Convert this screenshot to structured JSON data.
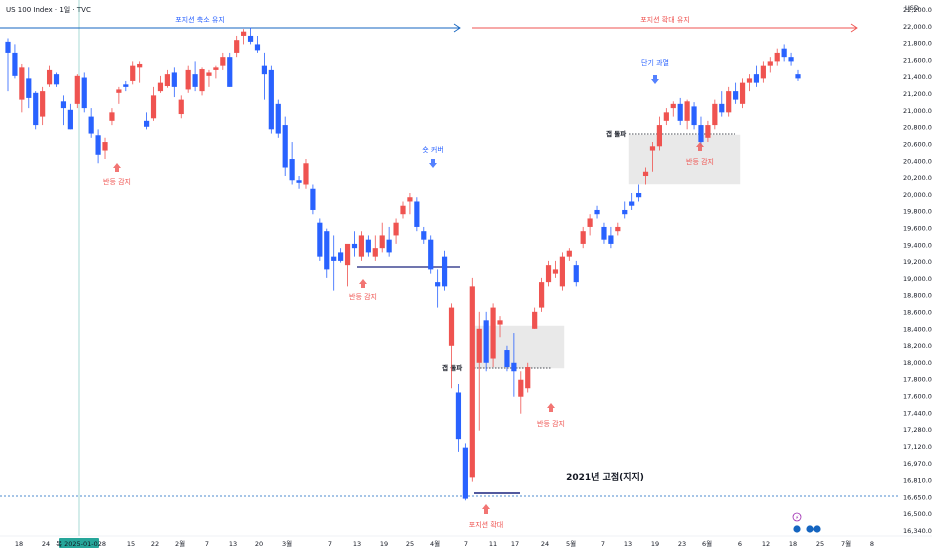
{
  "header": {
    "title": "US 100 Index · 1일 · TVC",
    "currency": "USD"
  },
  "colors": {
    "up": "#ef5350",
    "down": "#2962ff",
    "support_line": "#1a237e",
    "band_red": "#ef5350",
    "band_blue": "#1565c0"
  },
  "chart_data": {
    "type": "candlestick",
    "ylim": [
      16330,
      22220
    ],
    "y_ticks": [
      "22,200.00",
      "22,000.00",
      "21,800.00",
      "21,600.00",
      "21,400.00",
      "21,200.00",
      "21,000.00",
      "20,800.00",
      "20,600.00",
      "20,400.00",
      "20,200.00",
      "20,000.00",
      "19,800.00",
      "19,600.00",
      "19,400.00",
      "19,200.00",
      "19,000.00",
      "18,800.00",
      "18,600.00",
      "18,400.00",
      "18,200.00",
      "18,000.00",
      "17,800.00",
      "17,600.00",
      "17,440.00",
      "17,280.00",
      "17,120.00",
      "16,970.00",
      "16,810.00",
      "16,650.00",
      "16,500.00",
      "16,340.00"
    ],
    "x_ticks": [
      "18",
      "24",
      "목 2025-01-02",
      "8",
      "15",
      "22",
      "2월",
      "7",
      "13",
      "20",
      "3월",
      "7",
      "13",
      "19",
      "25",
      "4월",
      "7",
      "11",
      "17",
      "24",
      "5월",
      "7",
      "13",
      "19",
      "23",
      "6월",
      "6",
      "12",
      "18",
      "25",
      "7월",
      "8"
    ],
    "highlighted_date": "목 2025-01-02",
    "candles": [
      {
        "o": 22080,
        "h": 22120,
        "l": 21500,
        "c": 21950
      },
      {
        "o": 21950,
        "h": 22050,
        "l": 21650,
        "c": 21680
      },
      {
        "o": 21400,
        "h": 21820,
        "l": 21250,
        "c": 21780
      },
      {
        "o": 21650,
        "h": 21780,
        "l": 21300,
        "c": 21420
      },
      {
        "o": 21480,
        "h": 21500,
        "l": 21050,
        "c": 21100
      },
      {
        "o": 21200,
        "h": 21550,
        "l": 21100,
        "c": 21500
      },
      {
        "o": 21580,
        "h": 21800,
        "l": 21550,
        "c": 21750
      },
      {
        "o": 21700,
        "h": 21720,
        "l": 21550,
        "c": 21580
      },
      {
        "o": 21380,
        "h": 21450,
        "l": 21100,
        "c": 21300
      },
      {
        "o": 21280,
        "h": 21350,
        "l": 21050,
        "c": 21050
      },
      {
        "o": 21350,
        "h": 21700,
        "l": 21300,
        "c": 21680
      },
      {
        "o": 21660,
        "h": 21720,
        "l": 21250,
        "c": 21300
      },
      {
        "o": 21200,
        "h": 21300,
        "l": 20950,
        "c": 21000
      },
      {
        "o": 20980,
        "h": 21050,
        "l": 20650,
        "c": 20750
      },
      {
        "o": 20800,
        "h": 20950,
        "l": 20700,
        "c": 20900
      },
      {
        "o": 21150,
        "h": 21300,
        "l": 21100,
        "c": 21250
      },
      {
        "o": 21480,
        "h": 21550,
        "l": 21350,
        "c": 21520
      },
      {
        "o": 21580,
        "h": 21620,
        "l": 21500,
        "c": 21550
      },
      {
        "o": 21620,
        "h": 21850,
        "l": 21580,
        "c": 21800
      },
      {
        "o": 21780,
        "h": 21850,
        "l": 21600,
        "c": 21820
      },
      {
        "o": 21150,
        "h": 21250,
        "l": 21050,
        "c": 21080
      },
      {
        "o": 21180,
        "h": 21550,
        "l": 21150,
        "c": 21450
      },
      {
        "o": 21500,
        "h": 21680,
        "l": 21480,
        "c": 21600
      },
      {
        "o": 21560,
        "h": 21750,
        "l": 21540,
        "c": 21700
      },
      {
        "o": 21720,
        "h": 21780,
        "l": 21430,
        "c": 21550
      },
      {
        "o": 21230,
        "h": 21450,
        "l": 21180,
        "c": 21400
      },
      {
        "o": 21520,
        "h": 21800,
        "l": 21480,
        "c": 21750
      },
      {
        "o": 21700,
        "h": 21850,
        "l": 21500,
        "c": 21550
      },
      {
        "o": 21500,
        "h": 21780,
        "l": 21450,
        "c": 21760
      },
      {
        "o": 21680,
        "h": 21750,
        "l": 21550,
        "c": 21720
      },
      {
        "o": 21750,
        "h": 21800,
        "l": 21650,
        "c": 21780
      },
      {
        "o": 21800,
        "h": 21950,
        "l": 21750,
        "c": 21900
      },
      {
        "o": 21900,
        "h": 21950,
        "l": 21550,
        "c": 21550
      },
      {
        "o": 21950,
        "h": 22150,
        "l": 21900,
        "c": 22100
      },
      {
        "o": 22150,
        "h": 22230,
        "l": 22050,
        "c": 22200
      },
      {
        "o": 22150,
        "h": 22250,
        "l": 22050,
        "c": 22080
      },
      {
        "o": 22050,
        "h": 22150,
        "l": 21950,
        "c": 21980
      },
      {
        "o": 21800,
        "h": 21950,
        "l": 21400,
        "c": 21700
      },
      {
        "o": 21750,
        "h": 21800,
        "l": 21000,
        "c": 21050
      },
      {
        "o": 21350,
        "h": 21400,
        "l": 20950,
        "c": 21000
      },
      {
        "o": 21100,
        "h": 21200,
        "l": 20500,
        "c": 20600
      },
      {
        "o": 20700,
        "h": 20900,
        "l": 20400,
        "c": 20450
      },
      {
        "o": 20450,
        "h": 20500,
        "l": 20350,
        "c": 20420
      },
      {
        "o": 20400,
        "h": 20700,
        "l": 20350,
        "c": 20650
      },
      {
        "o": 20350,
        "h": 20400,
        "l": 20050,
        "c": 20100
      },
      {
        "o": 19950,
        "h": 20000,
        "l": 19500,
        "c": 19550
      },
      {
        "o": 19850,
        "h": 19880,
        "l": 19300,
        "c": 19400
      },
      {
        "o": 19550,
        "h": 19800,
        "l": 19150,
        "c": 19500
      },
      {
        "o": 19600,
        "h": 19650,
        "l": 19480,
        "c": 19500
      },
      {
        "o": 19450,
        "h": 19650,
        "l": 19200,
        "c": 19700
      },
      {
        "o": 19700,
        "h": 19850,
        "l": 19550,
        "c": 19650
      },
      {
        "o": 19550,
        "h": 19850,
        "l": 19500,
        "c": 19800
      },
      {
        "o": 19750,
        "h": 19800,
        "l": 19550,
        "c": 19600
      },
      {
        "o": 19550,
        "h": 19800,
        "l": 19500,
        "c": 19650
      },
      {
        "o": 19650,
        "h": 19950,
        "l": 19600,
        "c": 19800
      },
      {
        "o": 19750,
        "h": 19900,
        "l": 19550,
        "c": 19600
      },
      {
        "o": 19800,
        "h": 20000,
        "l": 19700,
        "c": 19950
      },
      {
        "o": 20050,
        "h": 20200,
        "l": 20000,
        "c": 20150
      },
      {
        "o": 20200,
        "h": 20300,
        "l": 20050,
        "c": 20250
      },
      {
        "o": 20200,
        "h": 20250,
        "l": 19850,
        "c": 19900
      },
      {
        "o": 19850,
        "h": 19900,
        "l": 19700,
        "c": 19750
      },
      {
        "o": 19750,
        "h": 19800,
        "l": 19350,
        "c": 19400
      },
      {
        "o": 19250,
        "h": 19400,
        "l": 18950,
        "c": 19200
      },
      {
        "o": 19550,
        "h": 19620,
        "l": 19150,
        "c": 19200
      },
      {
        "o": 18500,
        "h": 19000,
        "l": 18000,
        "c": 18950
      },
      {
        "o": 17950,
        "h": 18050,
        "l": 17250,
        "c": 17400
      },
      {
        "o": 17300,
        "h": 17350,
        "l": 16680,
        "c": 16700
      },
      {
        "o": 16950,
        "h": 19300,
        "l": 16900,
        "c": 19200
      },
      {
        "o": 18300,
        "h": 18900,
        "l": 17500,
        "c": 18700
      },
      {
        "o": 18800,
        "h": 18900,
        "l": 18200,
        "c": 18300
      },
      {
        "o": 18350,
        "h": 19000,
        "l": 18250,
        "c": 18950
      },
      {
        "o": 18750,
        "h": 18850,
        "l": 18600,
        "c": 18800
      },
      {
        "o": 18450,
        "h": 18500,
        "l": 18200,
        "c": 18250
      },
      {
        "o": 18300,
        "h": 18650,
        "l": 17900,
        "c": 18200
      },
      {
        "o": 17900,
        "h": 18200,
        "l": 17700,
        "c": 18100
      },
      {
        "o": 18000,
        "h": 18300,
        "l": 17950,
        "c": 18250
      },
      {
        "o": 18700,
        "h": 18950,
        "l": 18700,
        "c": 18900
      },
      {
        "o": 18950,
        "h": 19300,
        "l": 18900,
        "c": 19250
      },
      {
        "o": 19250,
        "h": 19500,
        "l": 19200,
        "c": 19450
      },
      {
        "o": 19350,
        "h": 19500,
        "l": 19300,
        "c": 19400
      },
      {
        "o": 19200,
        "h": 19600,
        "l": 19150,
        "c": 19550
      },
      {
        "o": 19550,
        "h": 19650,
        "l": 19500,
        "c": 19620
      },
      {
        "o": 19450,
        "h": 19500,
        "l": 19200,
        "c": 19250
      },
      {
        "o": 19700,
        "h": 19900,
        "l": 19650,
        "c": 19850
      },
      {
        "o": 19900,
        "h": 20050,
        "l": 19800,
        "c": 20000
      },
      {
        "o": 20100,
        "h": 20150,
        "l": 20000,
        "c": 20050
      },
      {
        "o": 19900,
        "h": 19950,
        "l": 19700,
        "c": 19750
      },
      {
        "o": 19800,
        "h": 19900,
        "l": 19650,
        "c": 19700
      },
      {
        "o": 19850,
        "h": 19950,
        "l": 19800,
        "c": 19900
      },
      {
        "o": 20100,
        "h": 20200,
        "l": 20000,
        "c": 20050
      },
      {
        "o": 20200,
        "h": 20300,
        "l": 20100,
        "c": 20150
      },
      {
        "o": 20300,
        "h": 20400,
        "l": 20200,
        "c": 20250
      },
      {
        "o": 20500,
        "h": 20600,
        "l": 20400,
        "c": 20550
      },
      {
        "o": 20800,
        "h": 20900,
        "l": 20550,
        "c": 20850
      },
      {
        "o": 20850,
        "h": 21200,
        "l": 20800,
        "c": 21100
      },
      {
        "o": 21150,
        "h": 21300,
        "l": 21100,
        "c": 21250
      },
      {
        "o": 21300,
        "h": 21380,
        "l": 21200,
        "c": 21350
      },
      {
        "o": 21350,
        "h": 21420,
        "l": 21100,
        "c": 21150
      },
      {
        "o": 21150,
        "h": 21400,
        "l": 21050,
        "c": 21380
      },
      {
        "o": 21320,
        "h": 21370,
        "l": 21050,
        "c": 21100
      },
      {
        "o": 21100,
        "h": 21200,
        "l": 20850,
        "c": 20900
      },
      {
        "o": 20950,
        "h": 21150,
        "l": 20900,
        "c": 21100
      },
      {
        "o": 21100,
        "h": 21400,
        "l": 21050,
        "c": 21350
      },
      {
        "o": 21350,
        "h": 21500,
        "l": 21200,
        "c": 21250
      },
      {
        "o": 21250,
        "h": 21550,
        "l": 21200,
        "c": 21500
      },
      {
        "o": 21500,
        "h": 21600,
        "l": 21350,
        "c": 21400
      },
      {
        "o": 21350,
        "h": 21650,
        "l": 21300,
        "c": 21600
      },
      {
        "o": 21600,
        "h": 21700,
        "l": 21500,
        "c": 21650
      },
      {
        "o": 21700,
        "h": 21800,
        "l": 21550,
        "c": 21600
      },
      {
        "o": 21650,
        "h": 21850,
        "l": 21600,
        "c": 21800
      },
      {
        "o": 21800,
        "h": 21900,
        "l": 21720,
        "c": 21850
      },
      {
        "o": 21850,
        "h": 22000,
        "l": 21800,
        "c": 21950
      },
      {
        "o": 22000,
        "h": 22050,
        "l": 21850,
        "c": 21900
      },
      {
        "o": 21900,
        "h": 21950,
        "l": 21800,
        "c": 21850
      },
      {
        "o": 21700,
        "h": 21750,
        "l": 21620,
        "c": 21650
      }
    ]
  },
  "annotations": {
    "band_left": "포지션 축소 유지",
    "band_right": "포지션 확대 유지",
    "rebound_1": "반등 감지",
    "rebound_2": "반등 감지",
    "rebound_3": "반등 감지",
    "rebound_4": "반등 감지",
    "short_covering": "숏 커버",
    "short_term_overheat": "단기 과열",
    "gap_fill_1": "갭 돌파",
    "gap_fill_2": "갭 돌파",
    "position_expand": "포지션 확대",
    "support_2021": "2021년 고점(지지)"
  }
}
